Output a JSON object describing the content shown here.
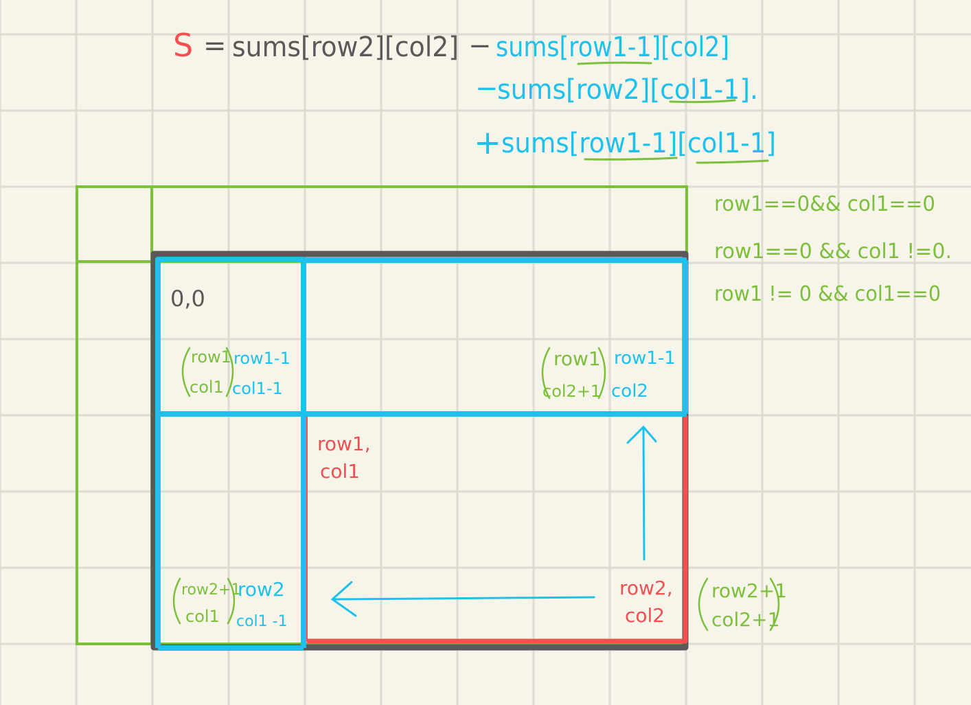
{
  "colors": {
    "background": "#f7f5ea",
    "grid": "#dcdcd2",
    "black": "#5a5858",
    "blue": "#1ec0ec",
    "green": "#7cbf3b",
    "red": "#f05050"
  },
  "formula": {
    "s": "S",
    "eq": "=",
    "term1": "sums[row2][col2]",
    "minus1": "−",
    "term2": "sums[row1-1][col2]",
    "minus2": "−",
    "term3": "sums[row2][col1-1].",
    "plus": "+",
    "term4": "sums[row1-1][col1-1]"
  },
  "conditions": [
    "row1==0&& col1==0",
    "row1==0 && col1 !=0.",
    "row1 != 0 && col1==0"
  ],
  "cells": {
    "origin": "0,0",
    "tl_green_1": "row1",
    "tl_green_2": "col1",
    "tl_blue_1": "row1-1",
    "tl_blue_2": "col1-1",
    "tr_green_1": "row1",
    "tr_green_2": "col2+1",
    "tr_blue_1": "row1-1",
    "tr_blue_2": "col2",
    "red_start_1": "row1,",
    "red_start_2": "col1",
    "bl_green_1": "row2+1",
    "bl_green_2": "col1",
    "bl_blue_1": "row2",
    "bl_blue_2": "col1 -1",
    "red_end_1": "row2,",
    "red_end_2": "col2",
    "outside_1": "row2+1",
    "outside_2": "col2+1"
  }
}
